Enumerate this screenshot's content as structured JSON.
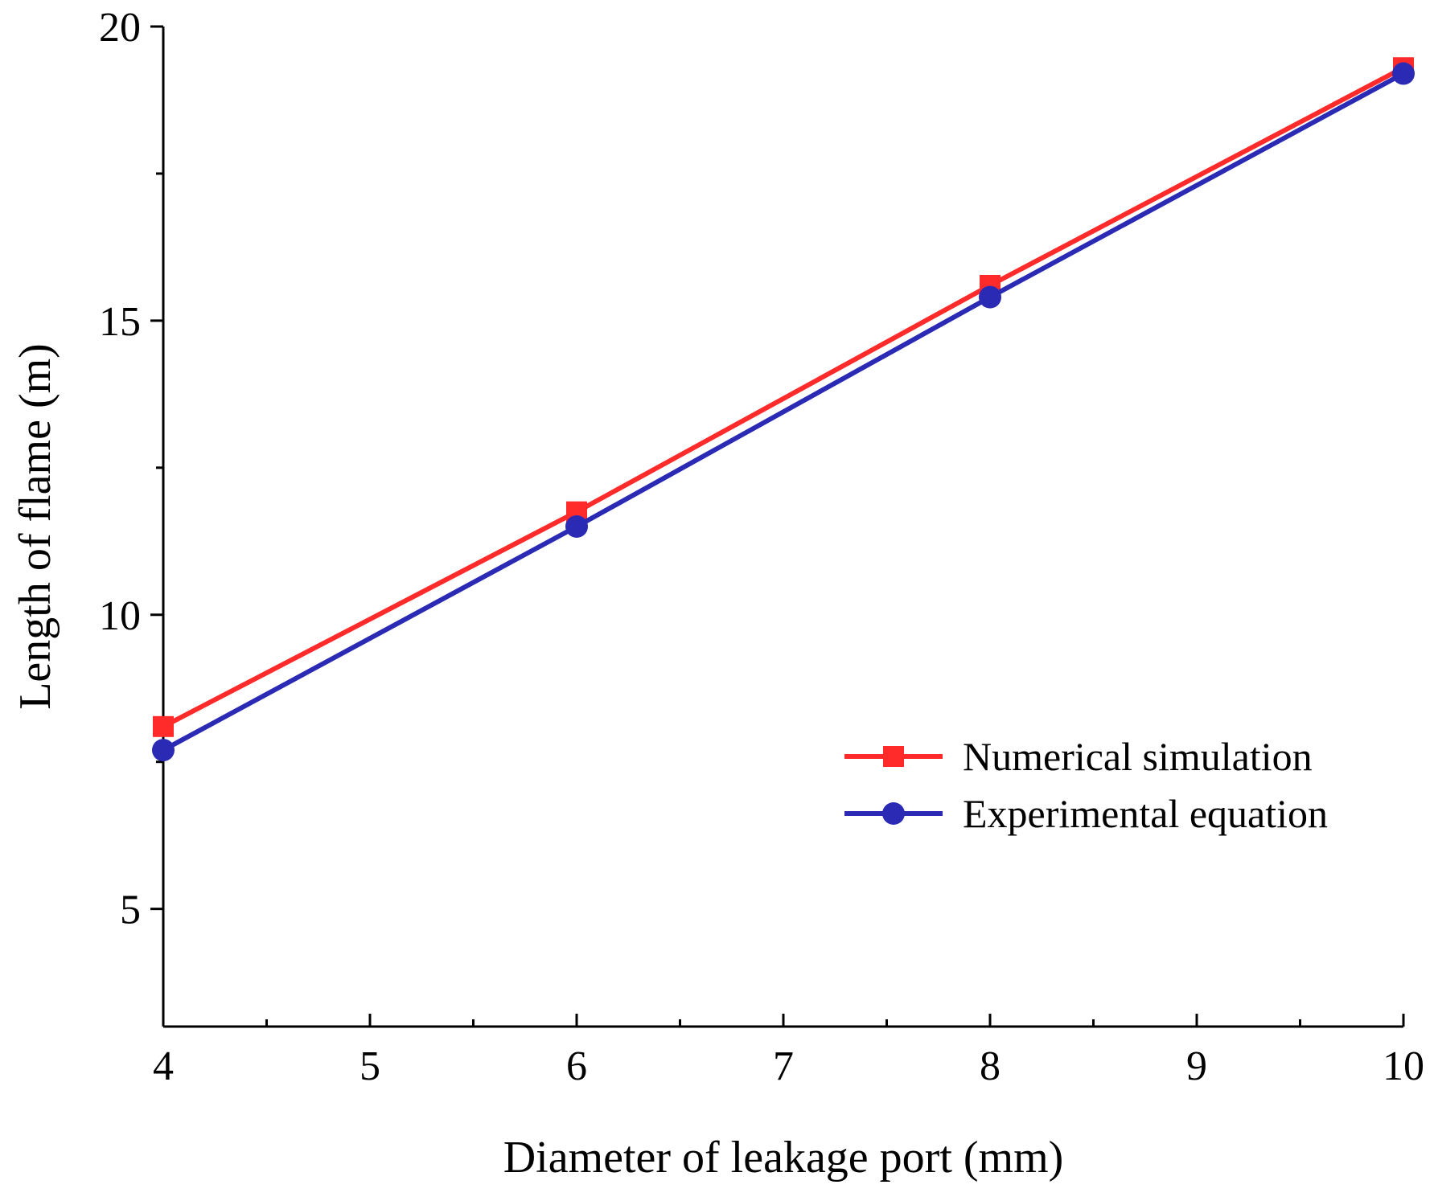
{
  "chart_data": {
    "type": "line",
    "title": "",
    "xlabel": "Diameter of leakage port (mm)",
    "ylabel": "Length of flame (m)",
    "xlim": [
      4,
      10
    ],
    "ylim": [
      3,
      20
    ],
    "x_ticks": [
      4,
      5,
      6,
      7,
      8,
      9,
      10
    ],
    "x_tick_labels": [
      "4",
      "5",
      "6",
      "7",
      "8",
      "9",
      "10"
    ],
    "y_ticks": [
      5,
      10,
      15,
      20
    ],
    "y_tick_labels": [
      "5",
      "10",
      "15",
      "20"
    ],
    "grid": false,
    "legend_position": "right",
    "series": [
      {
        "name": "Numerical simulation",
        "color": "#ff2a2a",
        "marker": "square",
        "x": [
          4,
          6,
          8,
          10
        ],
        "y": [
          8.1,
          11.75,
          15.6,
          19.3
        ]
      },
      {
        "name": "Experimental equation",
        "color": "#2a2ab4",
        "marker": "circle",
        "x": [
          4,
          6,
          8,
          10
        ],
        "y": [
          7.7,
          11.5,
          15.4,
          19.2
        ]
      }
    ]
  }
}
